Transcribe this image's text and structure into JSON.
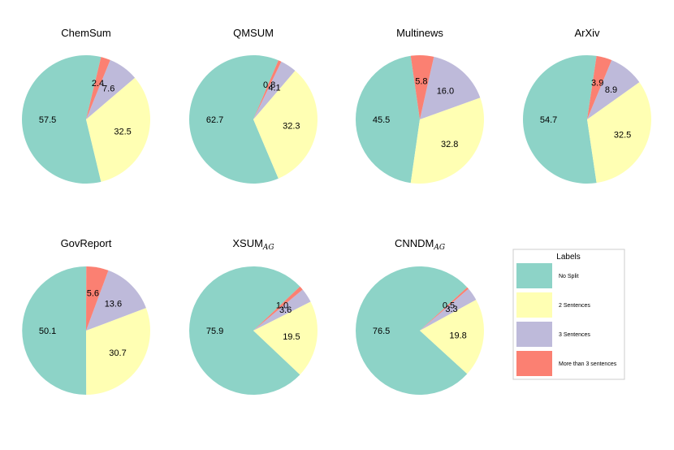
{
  "chart_data": {
    "type": "pie",
    "legend": {
      "title": "Labels",
      "placement": "right",
      "entries": [
        "No Split",
        "2 Sentences",
        "3 Sentences",
        "More than 3 sentences"
      ]
    },
    "colors": [
      "#8dd3c7",
      "#ffffb3",
      "#bebada",
      "#fb8072"
    ],
    "charts": [
      {
        "title": "ChemSum",
        "subscript": "",
        "values": [
          57.5,
          32.5,
          7.6,
          2.4
        ]
      },
      {
        "title": "QMSUM",
        "subscript": "",
        "values": [
          62.7,
          32.3,
          4.1,
          0.8
        ]
      },
      {
        "title": "Multinews",
        "subscript": "",
        "values": [
          45.5,
          32.8,
          16.0,
          5.8
        ]
      },
      {
        "title": "ArXiv",
        "subscript": "",
        "values": [
          54.7,
          32.5,
          8.9,
          3.9
        ]
      },
      {
        "title": "GovReport",
        "subscript": "",
        "values": [
          50.1,
          30.7,
          13.6,
          5.6
        ]
      },
      {
        "title": "XSUM",
        "subscript": "AG",
        "values": [
          75.9,
          19.5,
          3.6,
          1.0
        ]
      },
      {
        "title": "CNNDM",
        "subscript": "AG",
        "values": [
          76.5,
          19.8,
          3.3,
          0.5
        ]
      }
    ]
  }
}
